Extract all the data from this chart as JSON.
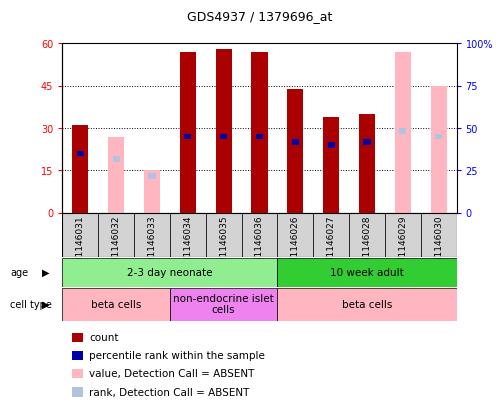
{
  "title": "GDS4937 / 1379696_at",
  "samples": [
    "GSM1146031",
    "GSM1146032",
    "GSM1146033",
    "GSM1146034",
    "GSM1146035",
    "GSM1146036",
    "GSM1146026",
    "GSM1146027",
    "GSM1146028",
    "GSM1146029",
    "GSM1146030"
  ],
  "count_values": [
    31,
    0,
    0,
    57,
    58,
    57,
    44,
    34,
    35,
    0,
    0
  ],
  "percentile_rank": [
    21,
    0,
    0,
    27,
    27,
    27,
    25,
    24,
    25,
    29,
    27
  ],
  "absent_value": [
    0,
    27,
    15,
    0,
    0,
    0,
    0,
    0,
    0,
    57,
    45
  ],
  "absent_rank": [
    0,
    19,
    13,
    0,
    0,
    0,
    0,
    0,
    0,
    29,
    27
  ],
  "ylim_left": [
    0,
    60
  ],
  "ylim_right": [
    0,
    100
  ],
  "yticks_left": [
    0,
    15,
    30,
    45,
    60
  ],
  "yticks_right": [
    0,
    25,
    50,
    75,
    100
  ],
  "ytick_labels_left": [
    "0",
    "15",
    "30",
    "45",
    "60"
  ],
  "ytick_labels_right": [
    "0",
    "25",
    "50",
    "75",
    "100%"
  ],
  "age_groups": [
    {
      "label": "2-3 day neonate",
      "start": 0,
      "end": 6,
      "color": "#90EE90"
    },
    {
      "label": "10 week adult",
      "start": 6,
      "end": 11,
      "color": "#32CD32"
    }
  ],
  "cell_type_groups": [
    {
      "label": "beta cells",
      "start": 0,
      "end": 3,
      "color": "#FFB6C1"
    },
    {
      "label": "non-endocrine islet\ncells",
      "start": 3,
      "end": 6,
      "color": "#EE82EE"
    },
    {
      "label": "beta cells",
      "start": 6,
      "end": 11,
      "color": "#FFB6C1"
    }
  ],
  "bar_width": 0.45,
  "count_color": "#AA0000",
  "rank_color": "#0000AA",
  "absent_value_color": "#FFB6C1",
  "absent_rank_color": "#B0C4DE",
  "label_fontsize": 6.5,
  "tick_fontsize": 7,
  "title_fontsize": 9,
  "legend_items": [
    {
      "color": "#AA0000",
      "label": "count"
    },
    {
      "color": "#0000AA",
      "label": "percentile rank within the sample"
    },
    {
      "color": "#FFB6C1",
      "label": "value, Detection Call = ABSENT"
    },
    {
      "color": "#B0C4DE",
      "label": "rank, Detection Call = ABSENT"
    }
  ]
}
